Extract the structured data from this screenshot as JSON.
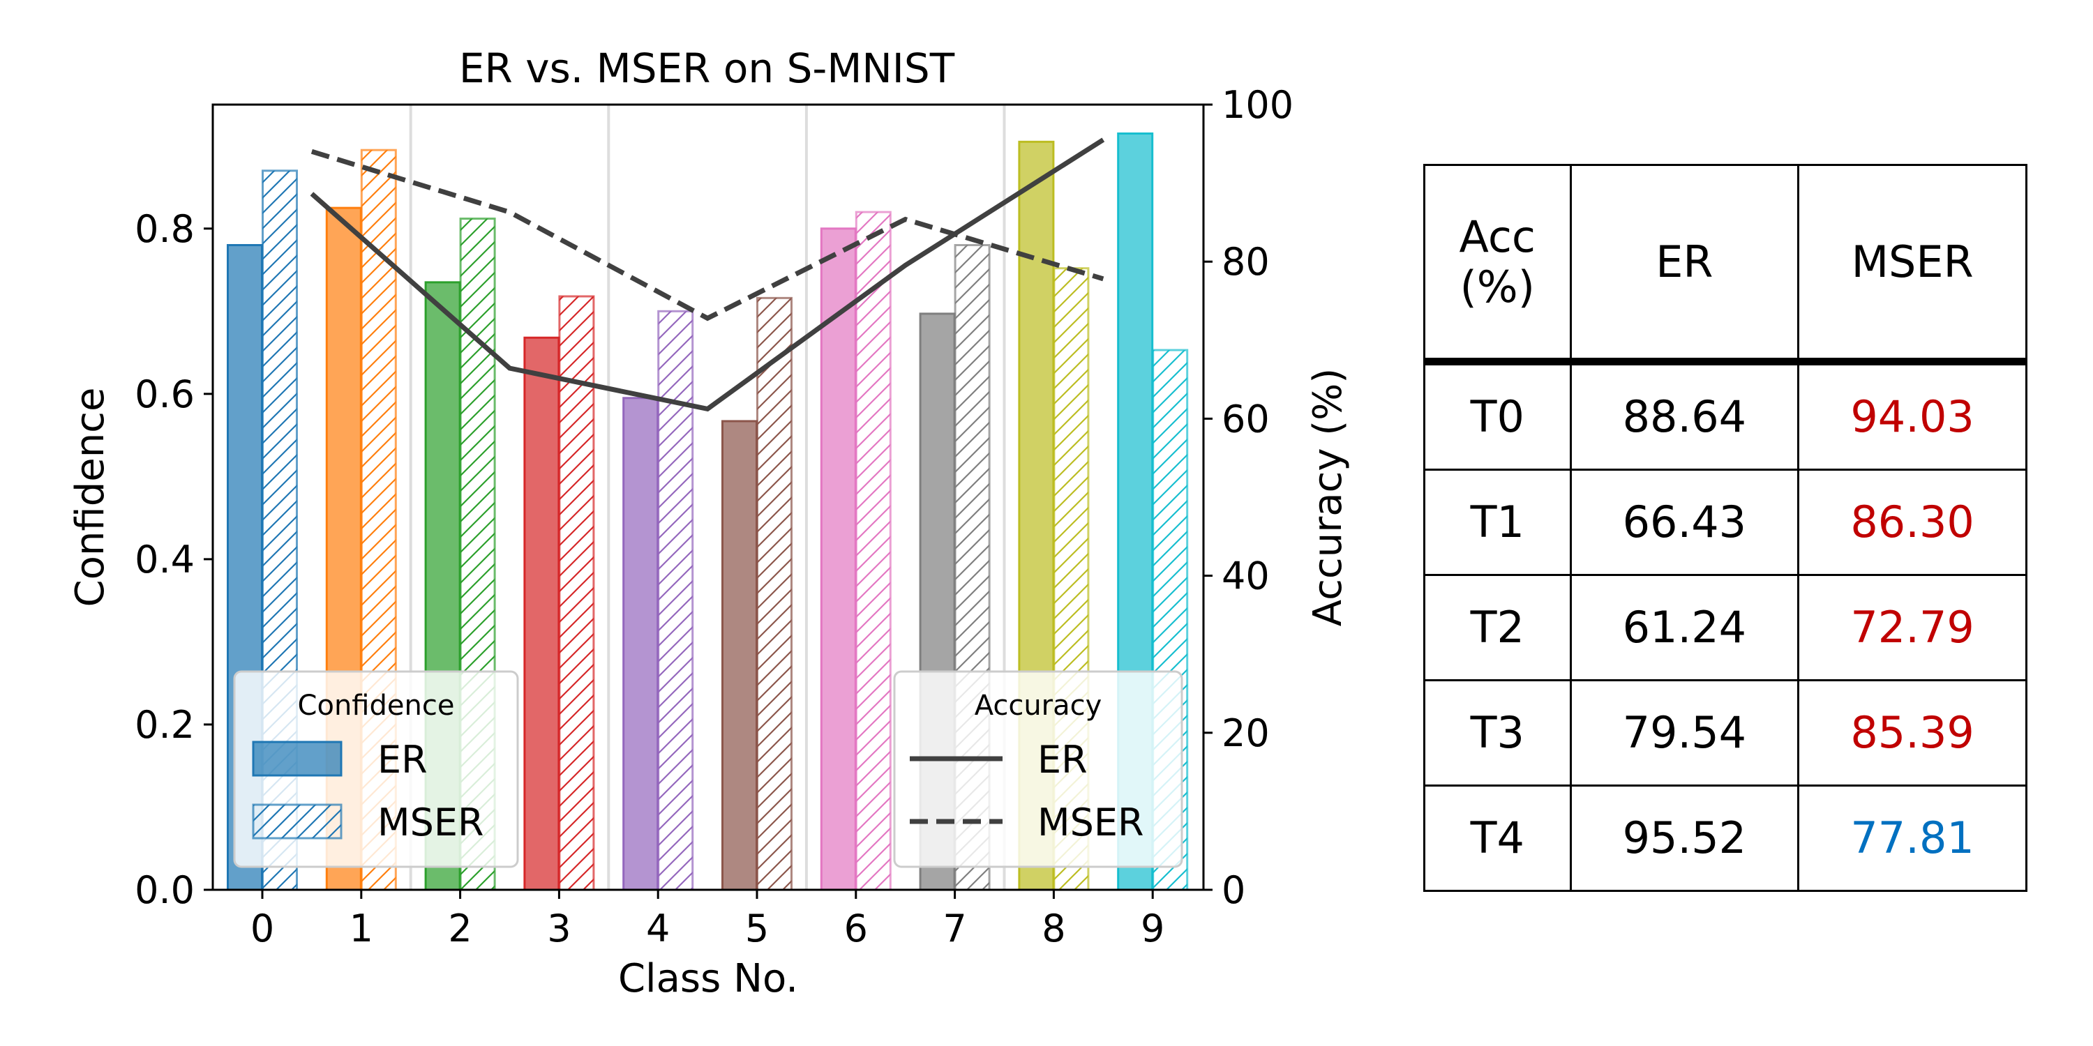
{
  "chart_data": {
    "type": "bar",
    "title": "ER vs. MSER on S-MNIST",
    "xlabel": "Class No.",
    "ylabel": "Confidence",
    "y2label": "Accuracy (%)",
    "ylim": [
      0.0,
      0.95
    ],
    "y2lim": [
      0,
      100
    ],
    "grid": "vertical-only",
    "categories": [
      "0",
      "1",
      "2",
      "3",
      "4",
      "5",
      "6",
      "7",
      "8",
      "9"
    ],
    "yticks": [
      "0.0",
      "0.2",
      "0.4",
      "0.6",
      "0.8"
    ],
    "y2ticks": [
      "0",
      "20",
      "40",
      "60",
      "80",
      "100"
    ],
    "colors": [
      "#1f77b4",
      "#ff7f0e",
      "#2ca02c",
      "#d62728",
      "#9467bd",
      "#8c564b",
      "#e377c2",
      "#7f7f7f",
      "#bcbd22",
      "#17becf"
    ],
    "bar_series": [
      {
        "name": "ER",
        "style": "solid",
        "values": [
          0.78,
          0.825,
          0.735,
          0.668,
          0.595,
          0.567,
          0.8,
          0.697,
          0.905,
          0.915
        ]
      },
      {
        "name": "MSER",
        "style": "hatched",
        "values": [
          0.87,
          0.895,
          0.812,
          0.718,
          0.7,
          0.716,
          0.82,
          0.78,
          0.752,
          0.653
        ]
      }
    ],
    "line_series": [
      {
        "name": "ER",
        "style": "solid",
        "x": [
          0.5,
          2.5,
          4.5,
          6.5,
          8.5
        ],
        "values": [
          88.64,
          66.43,
          61.24,
          79.54,
          95.52
        ]
      },
      {
        "name": "MSER",
        "style": "dashed",
        "x": [
          0.5,
          2.5,
          4.5,
          6.5,
          8.5
        ],
        "values": [
          94.03,
          86.3,
          72.79,
          85.39,
          77.81
        ]
      }
    ],
    "legends": [
      {
        "title": "Confidence",
        "position": "lower-left",
        "entries": [
          "ER",
          "MSER"
        ]
      },
      {
        "title": "Accuracy",
        "position": "lower-right",
        "entries": [
          "ER",
          "MSER"
        ]
      }
    ]
  },
  "table": {
    "header": [
      "Acc\n(%)",
      "ER",
      "MSER"
    ],
    "rows": [
      {
        "task": "T0",
        "er": "88.64",
        "mser": "94.03",
        "mser_color": "#c00000"
      },
      {
        "task": "T1",
        "er": "66.43",
        "mser": "86.30",
        "mser_color": "#c00000"
      },
      {
        "task": "T2",
        "er": "61.24",
        "mser": "72.79",
        "mser_color": "#c00000"
      },
      {
        "task": "T3",
        "er": "79.54",
        "mser": "85.39",
        "mser_color": "#c00000"
      },
      {
        "task": "T4",
        "er": "95.52",
        "mser": "77.81",
        "mser_color": "#0070c0"
      }
    ]
  }
}
